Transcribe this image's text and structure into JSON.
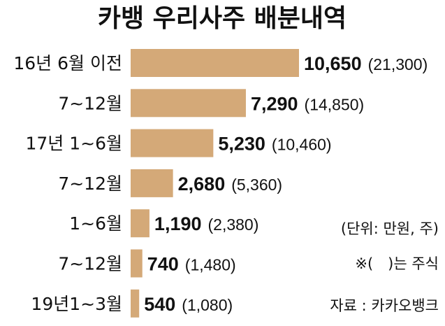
{
  "chart_data": {
    "type": "bar",
    "orientation": "horizontal",
    "title": "카뱅 우리사주 배분내역",
    "categories": [
      "16년 6월 이전",
      "7~12월",
      "17년 1~6월",
      "7~12월",
      "1~6월",
      "7~12월",
      "19년1~3월"
    ],
    "values": [
      10650,
      7290,
      5230,
      2680,
      1190,
      740,
      540
    ],
    "value_labels": [
      "10,650",
      "7,290",
      "5,230",
      "2,680",
      "1,190",
      "740",
      "540"
    ],
    "secondary_labels": [
      "(21,300)",
      "(14,850)",
      "(10,460)",
      "(5,360)",
      "(2,380)",
      "(1,480)",
      "(1,080)"
    ],
    "xlim": [
      0,
      10650
    ],
    "bar_color": "#d4a978",
    "grid": false,
    "legend": "none",
    "notes": {
      "unit": "(단위: 만원, 주)",
      "paren": "※(　)는 주식",
      "source": "자료 : 카카오뱅크"
    }
  }
}
